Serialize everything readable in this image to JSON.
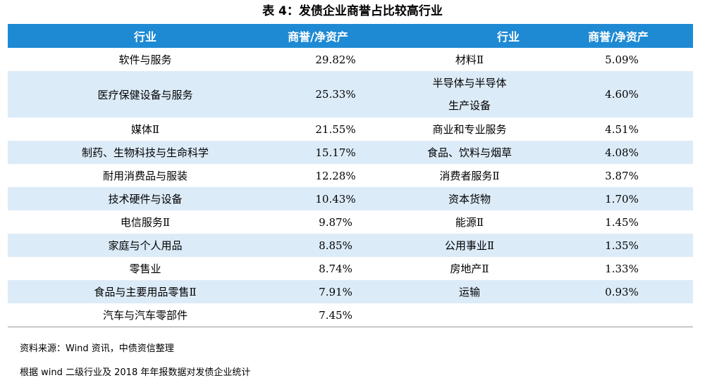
{
  "title": "表 4：发债企业商誉占比较高行业",
  "headers": [
    "行业",
    "商誉/净资产",
    "行业",
    "商誉/净资产"
  ],
  "rows": [
    {
      "c1": "软件与服务",
      "v1": "29.82%",
      "c2": [
        "材料Ⅱ"
      ],
      "v2": "5.09%"
    },
    {
      "c1": "医疗保健设备与服务",
      "v1": "25.33%",
      "c2": [
        "半导体与半导体",
        "生产设备"
      ],
      "v2": "4.60%"
    },
    {
      "c1": "媒体Ⅱ",
      "v1": "21.55%",
      "c2": [
        "商业和专业服务"
      ],
      "v2": "4.51%"
    },
    {
      "c1": "制药、生物科技与生命科学",
      "v1": "15.17%",
      "c2": [
        "食品、饮料与烟草"
      ],
      "v2": "4.08%"
    },
    {
      "c1": "耐用消费品与服装",
      "v1": "12.28%",
      "c2": [
        "消费者服务Ⅱ"
      ],
      "v2": "3.87%"
    },
    {
      "c1": "技术硬件与设备",
      "v1": "10.43%",
      "c2": [
        "资本货物"
      ],
      "v2": "1.70%"
    },
    {
      "c1": "电信服务Ⅱ",
      "v1": "9.87%",
      "c2": [
        "能源Ⅱ"
      ],
      "v2": "1.45%"
    },
    {
      "c1": "家庭与个人用品",
      "v1": "8.85%",
      "c2": [
        "公用事业Ⅱ"
      ],
      "v2": "1.35%"
    },
    {
      "c1": "零售业",
      "v1": "8.74%",
      "c2": [
        "房地产Ⅱ"
      ],
      "v2": "1.33%"
    },
    {
      "c1": "食品与主要用品零售Ⅱ",
      "v1": "7.91%",
      "c2": [
        "运输"
      ],
      "v2": "0.93%"
    },
    {
      "c1": "汽车与汽车零部件",
      "v1": "7.45%",
      "c2": [],
      "v2": ""
    }
  ],
  "notes": {
    "source": "资料来源：Wind 资讯，中债资信整理",
    "basis": "根据 wind 二级行业及 2018 年年报数据对发债企业统计"
  },
  "colors": {
    "header_bg": "#1f8ad4",
    "stripe_bg": "#dcebf8"
  }
}
